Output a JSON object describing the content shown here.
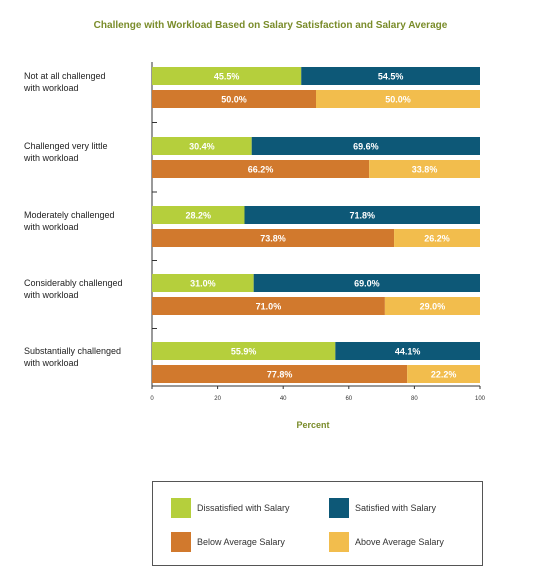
{
  "chart_data": {
    "type": "bar",
    "orientation": "horizontal",
    "stacked": true,
    "title": "Challenge with Workload Based on Salary Satisfaction and Salary Average",
    "xlabel": "Percent",
    "xlim": [
      0,
      100
    ],
    "xticks": [
      "0",
      "20",
      "40",
      "60",
      "80",
      "100"
    ],
    "categories": [
      [
        "Not at all challenged",
        "with workload"
      ],
      [
        "Challenged very little",
        "with workload"
      ],
      [
        "Moderately challenged",
        "with workload"
      ],
      [
        "Considerably challenged",
        "with workload"
      ],
      [
        "Substantially  challenged",
        "with workload"
      ]
    ],
    "groups": [
      {
        "series": [
          {
            "name": "Dissatisfied with Salary",
            "color": "#b5cf3c",
            "values": [
              45.5,
              30.4,
              28.2,
              31.0,
              55.9
            ],
            "labels": [
              "45.5%",
              "30.4%",
              "28.2%",
              "31.0%",
              "55.9%"
            ]
          },
          {
            "name": "Satisfied with Salary",
            "color": "#0d5877",
            "values": [
              54.5,
              69.6,
              71.8,
              69.0,
              44.1
            ],
            "labels": [
              "54.5%",
              "69.6%",
              "71.8%",
              "69.0%",
              "44.1%"
            ]
          }
        ]
      },
      {
        "series": [
          {
            "name": "Below Average Salary",
            "color": "#d1792d",
            "values": [
              50.0,
              66.2,
              73.8,
              71.0,
              77.8
            ],
            "labels": [
              "50.0%",
              "66.2%",
              "73.8%",
              "71.0%",
              "77.8%"
            ]
          },
          {
            "name": "Above Average Salary",
            "color": "#f2bd4d",
            "values": [
              50.0,
              33.8,
              26.2,
              29.0,
              22.2
            ],
            "labels": [
              "50.0%",
              "33.8%",
              "26.2%",
              "29.0%",
              "22.2%"
            ]
          }
        ]
      }
    ],
    "legend": {
      "position": "bottom",
      "items": [
        {
          "label": "Dissatisfied with Salary",
          "color": "#b5cf3c"
        },
        {
          "label": "Satisfied with Salary",
          "color": "#0d5877"
        },
        {
          "label": "Below Average Salary",
          "color": "#d1792d"
        },
        {
          "label": "Above Average Salary",
          "color": "#f2bd4d"
        }
      ]
    }
  }
}
